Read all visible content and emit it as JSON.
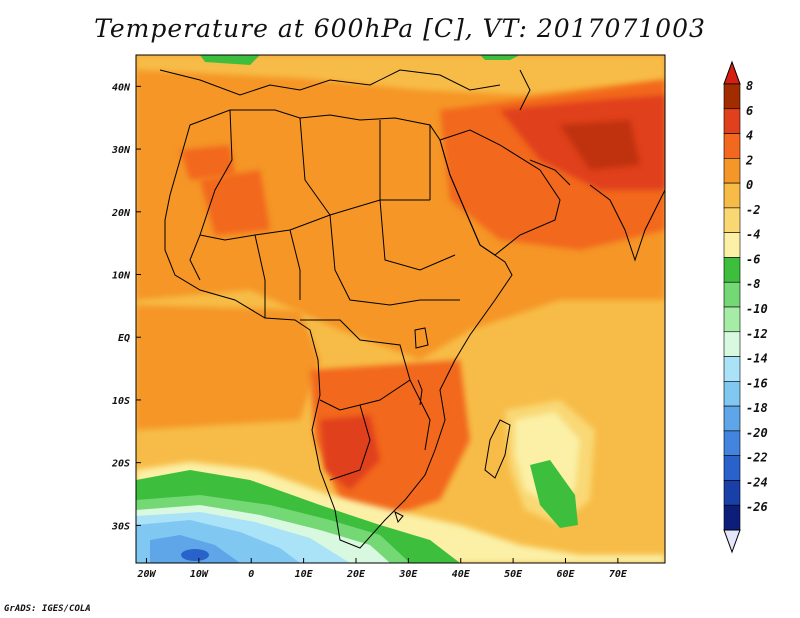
{
  "title": "Temperature at 600hPa [C], VT: 2017071003",
  "credit": "GrADS: IGES/COLA",
  "map": {
    "lat_labels": [
      "40N",
      "30N",
      "20N",
      "10N",
      "EQ",
      "10S",
      "20S",
      "30S"
    ],
    "lat_values": [
      40,
      30,
      20,
      10,
      0,
      -10,
      -20,
      -30
    ],
    "lon_labels": [
      "20W",
      "10W",
      "0",
      "10E",
      "20E",
      "30E",
      "40E",
      "50E",
      "60E",
      "70E"
    ],
    "lon_values": [
      -20,
      -10,
      0,
      10,
      20,
      30,
      40,
      50,
      60,
      70
    ],
    "lon_range": [
      -22,
      79
    ],
    "lat_range": [
      -36,
      45
    ]
  },
  "colorbar": {
    "labels": [
      "8",
      "6",
      "4",
      "2",
      "0",
      "-2",
      "-4",
      "-6",
      "-8",
      "-10",
      "-12",
      "-14",
      "-16",
      "-18",
      "-20",
      "-22",
      "-24",
      "-26"
    ],
    "colors": [
      "#a02c00",
      "#e0401e",
      "#f2681e",
      "#f59628",
      "#f7bc47",
      "#f9d874",
      "#fbf0a6",
      "#3dbf3d",
      "#74d874",
      "#a6eca6",
      "#d8f8e0",
      "#aae2f8",
      "#80c8f2",
      "#5ea6e8",
      "#4284de",
      "#2a62cc",
      "#1840a8",
      "#0c1e7a"
    ],
    "upper_arrow_color": "#d81e10",
    "lower_arrow_color": "#e6e6fa"
  }
}
